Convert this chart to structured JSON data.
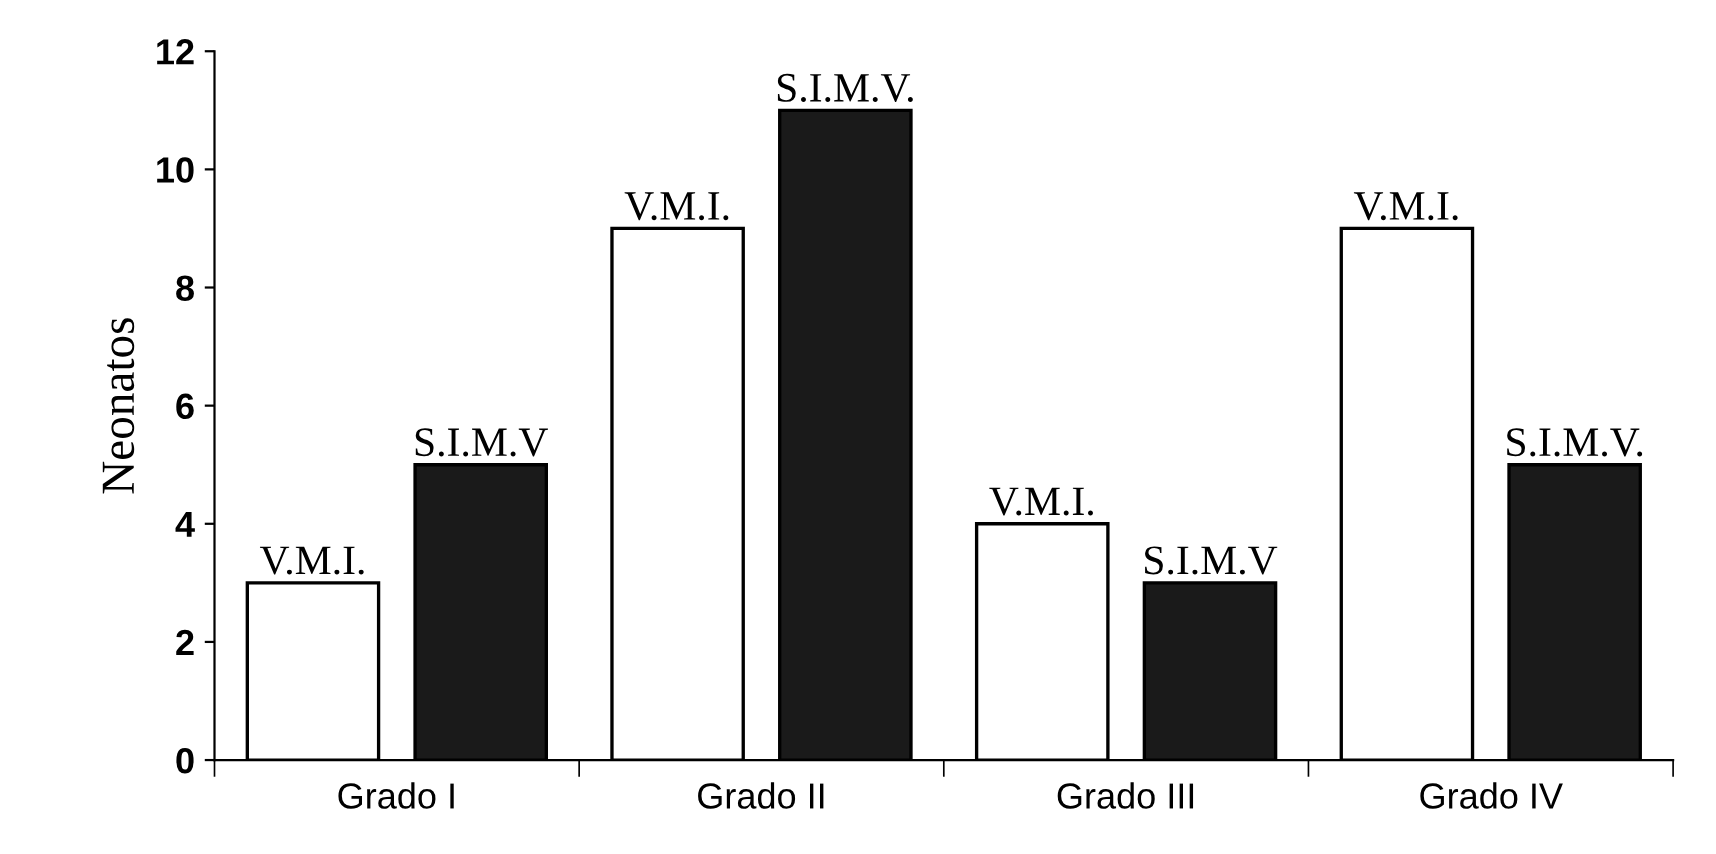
{
  "chart_data": {
    "type": "bar",
    "ylabel": "Neonatos",
    "categories": [
      "Grado I",
      "Grado II",
      "Grado III",
      "Grado IV"
    ],
    "series": [
      {
        "color": "#ffffff",
        "values": [
          3,
          9,
          4,
          9
        ],
        "value_labels": [
          "V.M.I.",
          "V.M.I.",
          "V.M.I.",
          "V.M.I."
        ]
      },
      {
        "color": "#1a1a1a",
        "values": [
          5,
          11,
          3,
          5
        ],
        "value_labels": [
          "S.I.M.V",
          "S.I.M.V.",
          "S.I.M.V",
          "S.I.M.V."
        ]
      }
    ],
    "ylim": [
      0,
      12
    ],
    "yticks": [
      0,
      2,
      4,
      6,
      8,
      10,
      12
    ],
    "grid": false,
    "legend": false
  }
}
